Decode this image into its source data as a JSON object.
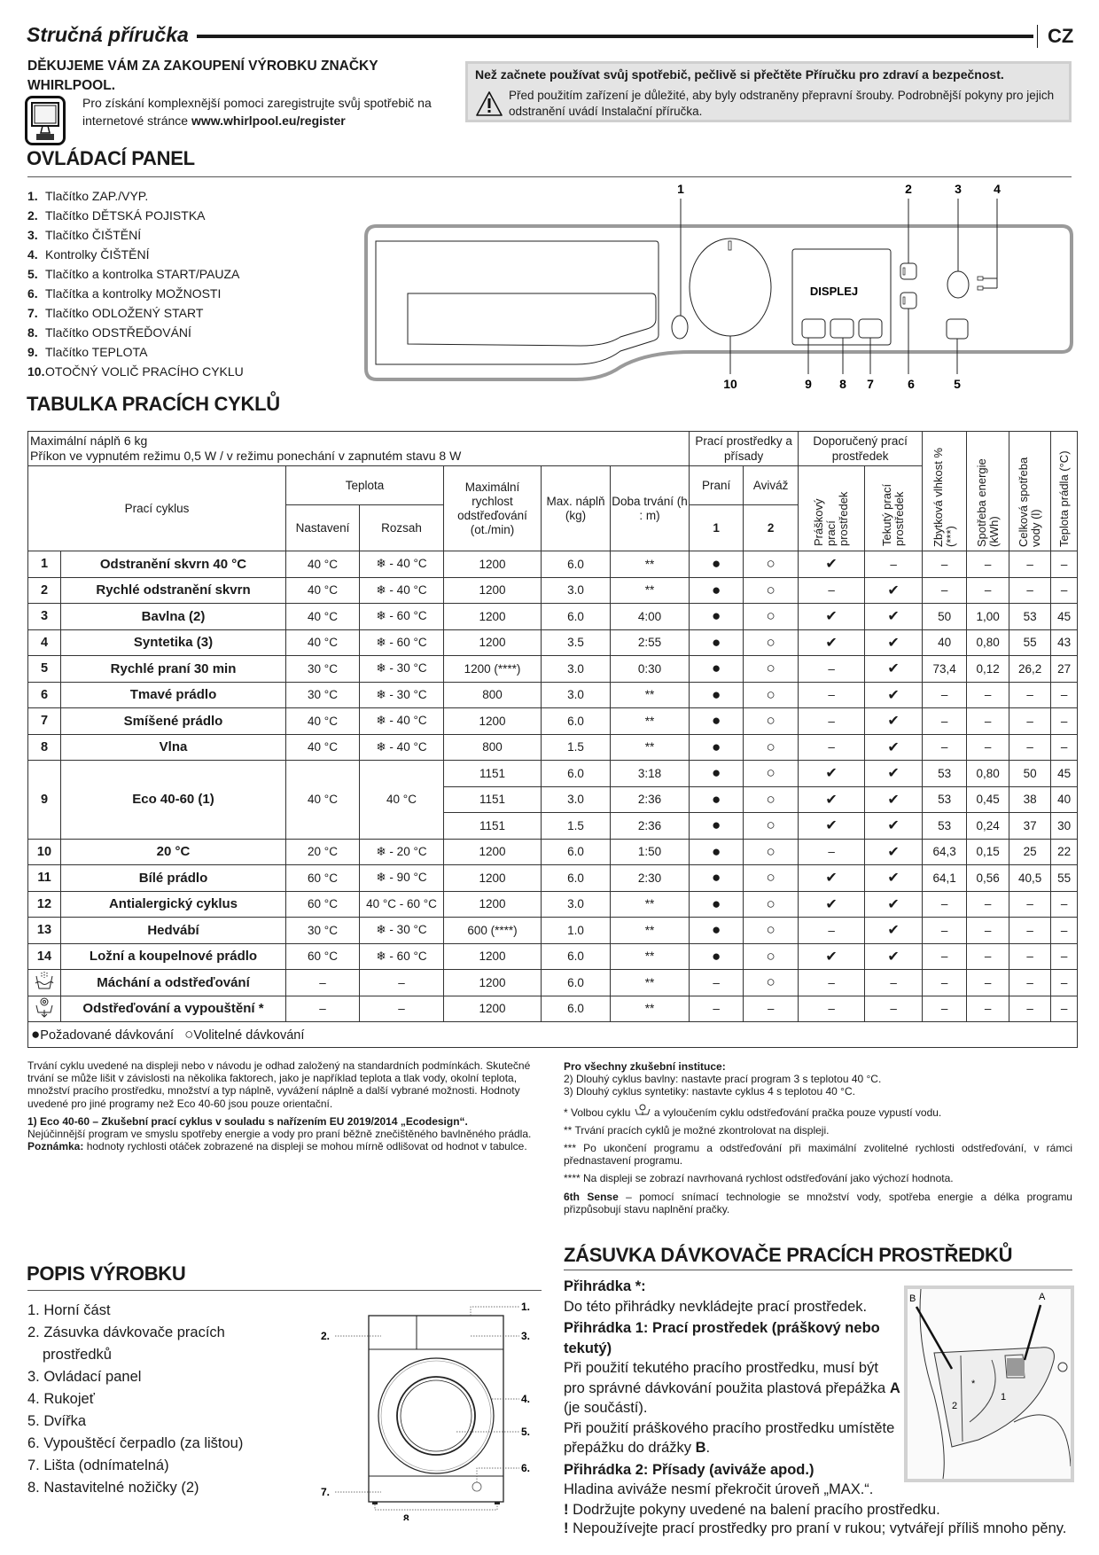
{
  "header": {
    "title": "Stručná příručka",
    "lang": "CZ"
  },
  "thanks": {
    "heading": "DĚKUJEME VÁM ZA ZAKOUPENÍ VÝROBKU ZNAČKY WHIRLPOOL.",
    "text": "Pro získání komplexnější pomoci zaregistrujte svůj spotřebič na internetové stránce ",
    "link": "www.whirlpool.eu/register"
  },
  "notice": {
    "bold": "Než začnete používat svůj spotřebič, pečlivě si přečtěte Příručku pro zdraví a bezpečnost.",
    "text": "Před použitím zařízení je důležité, aby byly odstraněny přepravní šrouby. Podrobnější pokyny pro jejich odstranění uvádí Instalační příručka."
  },
  "control_panel": {
    "heading": "OVLÁDACÍ PANEL",
    "items": [
      {
        "n": "1.",
        "label": "Tlačítko ZAP./VYP."
      },
      {
        "n": "2.",
        "label": "Tlačítko DĚTSKÁ POJISTKA"
      },
      {
        "n": "3.",
        "label": "Tlačítko ČIŠTĚNÍ"
      },
      {
        "n": "4.",
        "label": "Kontrolky ČIŠTĚNÍ"
      },
      {
        "n": "5.",
        "label": "Tlačítko a kontrolka START/PAUZA"
      },
      {
        "n": "6.",
        "label": "Tlačítka a kontrolky MOŽNOSTI"
      },
      {
        "n": "7.",
        "label": "Tlačítko ODLOŽENÝ START"
      },
      {
        "n": "8.",
        "label": "Tlačítko ODSTŘEĎOVÁNÍ"
      },
      {
        "n": "9.",
        "label": "Tlačítko TEPLOTA"
      },
      {
        "n": "10.",
        "label": "OTOČNÝ VOLIČ PRACÍHO CYKLU"
      }
    ],
    "display_label": "DISPLEJ",
    "callouts": [
      "1",
      "2",
      "3",
      "4",
      "5",
      "6",
      "7",
      "8",
      "9",
      "10"
    ]
  },
  "table": {
    "heading": "TABULKA PRACÍCH CYKLŮ",
    "intro1": "Maximální náplň 6 kg",
    "intro2": "Příkon ve vypnutém režimu 0,5 W / v režimu ponechání v zapnutém stavu 8 W",
    "h_detergents": "Prací prostředky a přísady",
    "h_recommended": "Doporučený prací prostředek",
    "h_moisture": "Zbytková vlhkost % (***)",
    "h_energy": "Spotřeba energie (kWh)",
    "h_water": "Celková spotřeba vody (l)",
    "h_temp": "Teplota prádla (°C)",
    "h_cycle": "Prací cyklus",
    "h_temperature": "Teplota",
    "h_setting": "Nastavení",
    "h_range": "Rozsah",
    "h_speed": "Maximální rychlost odstřeďování (ot./min)",
    "h_load": "Max. náplň (kg)",
    "h_duration": "Doba trvání (h : m)",
    "h_wash": "Praní",
    "h_soft": "Aviváž",
    "h_wash_n": "1",
    "h_soft_n": "2",
    "h_powder": "Práškový prací prostředek",
    "h_liquid": "Tekutý prací prostředek",
    "legend_required": "Požadované dávkování",
    "legend_optional": "Volitelné dávkování",
    "cycles": [
      {
        "no": "1",
        "name": "Odstranění skvrn 40 °C",
        "set": "40 °C",
        "range": "❄ - 40 °C",
        "v": [
          [
            "1200",
            "6.0",
            "**",
            "●",
            "○",
            "✔",
            "–",
            "–",
            "–",
            "–",
            "–"
          ]
        ]
      },
      {
        "no": "2",
        "name": "Rychlé odstranění skvrn",
        "set": "40 °C",
        "range": "❄ - 40 °C",
        "v": [
          [
            "1200",
            "3.0",
            "**",
            "●",
            "○",
            "–",
            "✔",
            "–",
            "–",
            "–",
            "–"
          ]
        ]
      },
      {
        "no": "3",
        "name": "Bavlna (2)",
        "set": "40 °C",
        "range": "❄ - 60 °C",
        "v": [
          [
            "1200",
            "6.0",
            "4:00",
            "●",
            "○",
            "✔",
            "✔",
            "50",
            "1,00",
            "53",
            "45"
          ]
        ]
      },
      {
        "no": "4",
        "name": "Syntetika (3)",
        "set": "40 °C",
        "range": "❄ - 60 °C",
        "v": [
          [
            "1200",
            "3.5",
            "2:55",
            "●",
            "○",
            "✔",
            "✔",
            "40",
            "0,80",
            "55",
            "43"
          ]
        ]
      },
      {
        "no": "5",
        "name": "Rychlé praní 30 min",
        "set": "30 °C",
        "range": "❄ - 30 °C",
        "v": [
          [
            "1200 (****)",
            "3.0",
            "0:30",
            "●",
            "○",
            "–",
            "✔",
            "73,4",
            "0,12",
            "26,2",
            "27"
          ]
        ]
      },
      {
        "no": "6",
        "name": "Tmavé prádlo",
        "set": "30 °C",
        "range": "❄ - 30 °C",
        "v": [
          [
            "800",
            "3.0",
            "**",
            "●",
            "○",
            "–",
            "✔",
            "–",
            "–",
            "–",
            "–"
          ]
        ]
      },
      {
        "no": "7",
        "name": "Smíšené prádlo",
        "set": "40 °C",
        "range": "❄ - 40 °C",
        "v": [
          [
            "1200",
            "6.0",
            "**",
            "●",
            "○",
            "–",
            "✔",
            "–",
            "–",
            "–",
            "–"
          ]
        ]
      },
      {
        "no": "8",
        "name": "Vlna",
        "set": "40 °C",
        "range": "❄ - 40 °C",
        "v": [
          [
            "800",
            "1.5",
            "**",
            "●",
            "○",
            "–",
            "✔",
            "–",
            "–",
            "–",
            "–"
          ]
        ]
      },
      {
        "no": "9",
        "name": "Eco 40-60 (1)",
        "set": "40 °C",
        "range": "40 °C",
        "v": [
          [
            "1151",
            "6.0",
            "3:18",
            "●",
            "○",
            "✔",
            "✔",
            "53",
            "0,80",
            "50",
            "45"
          ],
          [
            "1151",
            "3.0",
            "2:36",
            "●",
            "○",
            "✔",
            "✔",
            "53",
            "0,45",
            "38",
            "40"
          ],
          [
            "1151",
            "1.5",
            "2:36",
            "●",
            "○",
            "✔",
            "✔",
            "53",
            "0,24",
            "37",
            "30"
          ]
        ]
      },
      {
        "no": "10",
        "name": "20 °C",
        "set": "20 °C",
        "range": "❄ - 20 °C",
        "v": [
          [
            "1200",
            "6.0",
            "1:50",
            "●",
            "○",
            "–",
            "✔",
            "64,3",
            "0,15",
            "25",
            "22"
          ]
        ]
      },
      {
        "no": "11",
        "name": "Bílé prádlo",
        "set": "60 °C",
        "range": "❄ - 90 °C",
        "v": [
          [
            "1200",
            "6.0",
            "2:30",
            "●",
            "○",
            "✔",
            "✔",
            "64,1",
            "0,56",
            "40,5",
            "55"
          ]
        ]
      },
      {
        "no": "12",
        "name": "Antialergický cyklus",
        "set": "60 °C",
        "range": "40 °C - 60 °C",
        "v": [
          [
            "1200",
            "3.0",
            "**",
            "●",
            "○",
            "✔",
            "✔",
            "–",
            "–",
            "–",
            "–"
          ]
        ]
      },
      {
        "no": "13",
        "name": "Hedvábí",
        "set": "30 °C",
        "range": "❄ - 30 °C",
        "v": [
          [
            "600 (****)",
            "1.0",
            "**",
            "●",
            "○",
            "–",
            "✔",
            "–",
            "–",
            "–",
            "–"
          ]
        ]
      },
      {
        "no": "14",
        "name": "Ložní a koupelnové prádlo",
        "set": "60 °C",
        "range": "❄ - 60 °C",
        "v": [
          [
            "1200",
            "6.0",
            "**",
            "●",
            "○",
            "✔",
            "✔",
            "–",
            "–",
            "–",
            "–"
          ]
        ]
      },
      {
        "icon": "rinse-spin-icon",
        "name": "Máchání a odstřeďování",
        "set": "–",
        "range": "–",
        "v": [
          [
            "1200",
            "6.0",
            "**",
            "–",
            "○",
            "–",
            "–",
            "–",
            "–",
            "–",
            "–"
          ]
        ]
      },
      {
        "icon": "spin-drain-icon",
        "name": "Odstřeďování a vypouštění *",
        "set": "–",
        "range": "–",
        "v": [
          [
            "1200",
            "6.0",
            "**",
            "–",
            "–",
            "–",
            "–",
            "–",
            "–",
            "–",
            "–"
          ]
        ]
      }
    ]
  },
  "notes_left": {
    "p1": "Trvání cyklu uvedené na displeji nebo v návodu je odhad založený na standardních podmínkách. Skutečné trvání se může lišit v závislosti na několika faktorech, jako je například teplota a tlak vody, okolní teplota, množství pracího prostředku, množství a typ náplně, vyvážení náplně a další vybrané možnosti. Hodnoty uvedené pro jiné programy než Eco 40-60 jsou pouze orientační.",
    "eco_bold": "1) Eco 40-60 – Zkušební prací cyklus v souladu s nařízením EU 2019/2014 „Ecodesign“.",
    "eco_text": "Nejúčinnější program ve smyslu spotřeby energie a vody pro praní běžně znečištěného bavlněného prádla.",
    "note_bold": "Poznámka:",
    "note_text": " hodnoty rychlosti otáček zobrazené na displeji se mohou mírně odlišovat od hodnot v tabulce."
  },
  "notes_right": {
    "inst_bold": "Pro všechny zkušební instituce:",
    "inst1": "2)  Dlouhý cyklus bavlny: nastavte prací program 3 s teplotou 40 °C.",
    "inst2": "3)  Dlouhý cyklus syntetiky: nastavte cyklus 4 s teplotou 40 °C.",
    "n1a": "* Volbou cyklu ",
    "n1b": " a vyloučením cyklu odstřeďování pračka pouze vypustí vodu.",
    "n2": "** Trvání pracích cyklů je možné zkontrolovat na displeji.",
    "n3": "*** Po ukončení programu a odstřeďování při maximální zvolitelné rychlosti odstřeďování, v rámci přednastavení programu.",
    "n4": "**** Na displeji se zobrazí navrhovaná rychlost odstřeďování jako výchozí hodnota.",
    "sense_bold": "6th Sense",
    "sense_text": " – pomocí snímací technologie se množství vody, spotřeba energie a délka programu přizpůsobují stavu naplnění pračky."
  },
  "product": {
    "heading": "POPIS VÝROBKU",
    "items": [
      "1. Horní část",
      "2. Zásuvka dávkovače pracích",
      "prostředků",
      "3. Ovládací panel",
      "4. Rukojeť",
      "5. Dvířka",
      "6. Vypouštěcí čerpadlo (za lištou)",
      "7. Lišta (odnímatelná)",
      "8. Nastavitelné nožičky (2)"
    ],
    "callouts": [
      "1.",
      "2.",
      "3.",
      "4.",
      "5.",
      "6.",
      "7.",
      "8."
    ]
  },
  "dispenser": {
    "heading": "ZÁSUVKA DÁVKOVAČE PRACÍCH PROSTŘEDKŮ",
    "c0_title": "Přihrádka *:",
    "c0_text": "Do této přihrádky nevkládejte prací prostředek.",
    "c1_title": "Přihrádka 1: Prací prostředek (práškový nebo tekutý)",
    "c1_t1": "Při použití tekutého pracího prostředku, musí být pro správné dávkování použita plastová přepážka ",
    "c1_A": "A",
    "c1_t2": " (je součástí).",
    "c1_t3": "Při použití práškového pracího prostředku umístěte přepážku do drážky ",
    "c1_B": "B",
    "c1_t4": ".",
    "c2_title": "Přihrádka 2: Přísady (aviváže apod.)",
    "c2_text": "Hladina aviváže nesmí překročit úroveň „MAX.“.",
    "warn1": "Dodržujte pokyny uvedené na balení pracího prostředku.",
    "warn2": "Nepoužívejte prací prostředky pro praní v rukou; vytvářejí příliš mnoho pěny.",
    "img_labels": {
      "a": "A",
      "b": "B",
      "star": "*",
      "one": "1",
      "two": "2"
    }
  }
}
